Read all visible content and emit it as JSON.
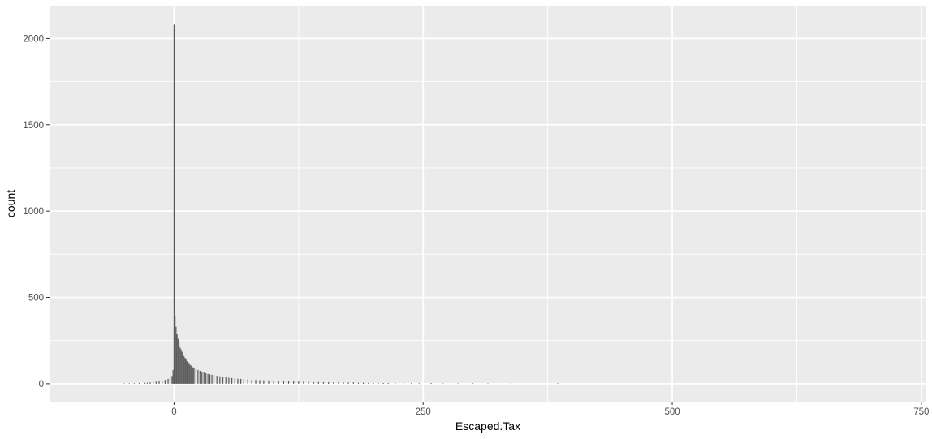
{
  "chart_data": {
    "type": "bar",
    "title": "",
    "xlabel": "Escaped.Tax",
    "ylabel": "count",
    "xlim": [
      -125,
      755
    ],
    "ylim": [
      -104,
      2190
    ],
    "x_ticks": [
      0,
      250,
      500,
      750
    ],
    "y_ticks": [
      0,
      500,
      1000,
      1500,
      2000
    ],
    "x_minor": [
      -125,
      125,
      375,
      625
    ],
    "y_minor": [
      250,
      750,
      1250,
      1750
    ],
    "grid": true,
    "legend": "none",
    "colors": {
      "panel": "#ebebeb",
      "grid": "#ffffff",
      "bar": "#595959"
    },
    "bins": [
      {
        "x": -50,
        "count": 2
      },
      {
        "x": -45,
        "count": 3
      },
      {
        "x": -40,
        "count": 3
      },
      {
        "x": -35,
        "count": 4
      },
      {
        "x": -30,
        "count": 5
      },
      {
        "x": -27,
        "count": 6
      },
      {
        "x": -24,
        "count": 8
      },
      {
        "x": -21,
        "count": 10
      },
      {
        "x": -18,
        "count": 12
      },
      {
        "x": -15,
        "count": 15
      },
      {
        "x": -12,
        "count": 18
      },
      {
        "x": -9,
        "count": 22
      },
      {
        "x": -6,
        "count": 28
      },
      {
        "x": -4,
        "count": 35
      },
      {
        "x": -2,
        "count": 45
      },
      {
        "x": -1,
        "count": 80
      },
      {
        "x": 0,
        "count": 2080
      },
      {
        "x": 1,
        "count": 390
      },
      {
        "x": 2,
        "count": 330
      },
      {
        "x": 3,
        "count": 290
      },
      {
        "x": 4,
        "count": 260
      },
      {
        "x": 5,
        "count": 240
      },
      {
        "x": 6,
        "count": 210
      },
      {
        "x": 7,
        "count": 200
      },
      {
        "x": 8,
        "count": 185
      },
      {
        "x": 9,
        "count": 170
      },
      {
        "x": 10,
        "count": 160
      },
      {
        "x": 11,
        "count": 150
      },
      {
        "x": 12,
        "count": 140
      },
      {
        "x": 13,
        "count": 130
      },
      {
        "x": 14,
        "count": 125
      },
      {
        "x": 15,
        "count": 120
      },
      {
        "x": 16,
        "count": 110
      },
      {
        "x": 17,
        "count": 105
      },
      {
        "x": 18,
        "count": 100
      },
      {
        "x": 19,
        "count": 95
      },
      {
        "x": 20,
        "count": 90
      },
      {
        "x": 22,
        "count": 85
      },
      {
        "x": 24,
        "count": 80
      },
      {
        "x": 26,
        "count": 75
      },
      {
        "x": 28,
        "count": 70
      },
      {
        "x": 30,
        "count": 65
      },
      {
        "x": 32,
        "count": 60
      },
      {
        "x": 34,
        "count": 57
      },
      {
        "x": 36,
        "count": 54
      },
      {
        "x": 38,
        "count": 52
      },
      {
        "x": 40,
        "count": 50
      },
      {
        "x": 43,
        "count": 46
      },
      {
        "x": 46,
        "count": 43
      },
      {
        "x": 49,
        "count": 40
      },
      {
        "x": 52,
        "count": 37
      },
      {
        "x": 55,
        "count": 35
      },
      {
        "x": 58,
        "count": 33
      },
      {
        "x": 61,
        "count": 31
      },
      {
        "x": 64,
        "count": 29
      },
      {
        "x": 67,
        "count": 28
      },
      {
        "x": 70,
        "count": 26
      },
      {
        "x": 74,
        "count": 25
      },
      {
        "x": 78,
        "count": 23
      },
      {
        "x": 82,
        "count": 22
      },
      {
        "x": 86,
        "count": 21
      },
      {
        "x": 90,
        "count": 20
      },
      {
        "x": 95,
        "count": 19
      },
      {
        "x": 100,
        "count": 18
      },
      {
        "x": 105,
        "count": 17
      },
      {
        "x": 110,
        "count": 16
      },
      {
        "x": 115,
        "count": 15
      },
      {
        "x": 120,
        "count": 14
      },
      {
        "x": 125,
        "count": 13
      },
      {
        "x": 130,
        "count": 12
      },
      {
        "x": 135,
        "count": 11
      },
      {
        "x": 140,
        "count": 10
      },
      {
        "x": 145,
        "count": 10
      },
      {
        "x": 150,
        "count": 9
      },
      {
        "x": 155,
        "count": 9
      },
      {
        "x": 160,
        "count": 8
      },
      {
        "x": 165,
        "count": 8
      },
      {
        "x": 170,
        "count": 7
      },
      {
        "x": 175,
        "count": 7
      },
      {
        "x": 180,
        "count": 8
      },
      {
        "x": 185,
        "count": 6
      },
      {
        "x": 190,
        "count": 6
      },
      {
        "x": 195,
        "count": 5
      },
      {
        "x": 200,
        "count": 5
      },
      {
        "x": 205,
        "count": 5
      },
      {
        "x": 210,
        "count": 4
      },
      {
        "x": 215,
        "count": 4
      },
      {
        "x": 222,
        "count": 4
      },
      {
        "x": 230,
        "count": 3
      },
      {
        "x": 238,
        "count": 3
      },
      {
        "x": 246,
        "count": 3
      },
      {
        "x": 258,
        "count": 4
      },
      {
        "x": 270,
        "count": 2
      },
      {
        "x": 285,
        "count": 2
      },
      {
        "x": 300,
        "count": 2
      },
      {
        "x": 315,
        "count": 2
      },
      {
        "x": 338,
        "count": 3
      },
      {
        "x": 385,
        "count": 3
      }
    ]
  }
}
